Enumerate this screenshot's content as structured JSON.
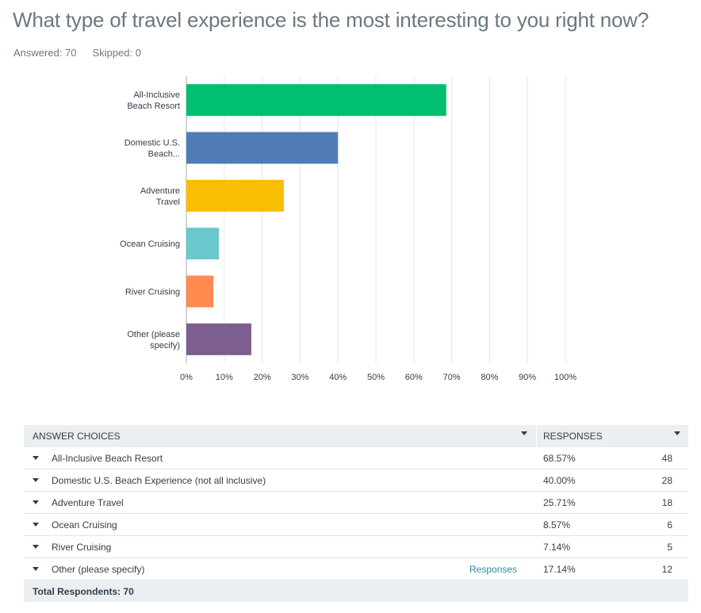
{
  "question": {
    "title": "What type of travel experience is the most interesting to you right now?",
    "answered": "Answered: 70",
    "skipped": "Skipped: 0"
  },
  "colors": {
    "bars": [
      "#00bf6f",
      "#507cb6",
      "#f9be00",
      "#6bc8cd",
      "#ff8b4f",
      "#7d5e90"
    ],
    "grid": "#e6e6e6",
    "axis": "#aaaaaa"
  },
  "chart_data": {
    "type": "bar",
    "orientation": "horizontal",
    "categories": [
      [
        "All-Inclusive",
        "Beach Resort"
      ],
      [
        "Domestic U.S.",
        "Beach..."
      ],
      [
        "Adventure",
        "Travel"
      ],
      [
        "Ocean Cruising"
      ],
      [
        "River Cruising"
      ],
      [
        "Other (please",
        "specify)"
      ]
    ],
    "values": [
      68.57,
      40.0,
      25.71,
      8.57,
      7.14,
      17.14
    ],
    "xlim": [
      0,
      100
    ],
    "xticks": [
      "0%",
      "10%",
      "20%",
      "30%",
      "40%",
      "50%",
      "60%",
      "70%",
      "80%",
      "90%",
      "100%"
    ],
    "grid": true
  },
  "table": {
    "header_choices": "ANSWER CHOICES",
    "header_responses": "RESPONSES",
    "rows": [
      {
        "label": "All-Inclusive Beach Resort",
        "pct": "68.57%",
        "count": "48",
        "link": ""
      },
      {
        "label": "Domestic U.S. Beach Experience (not all inclusive)",
        "pct": "40.00%",
        "count": "28",
        "link": ""
      },
      {
        "label": "Adventure Travel",
        "pct": "25.71%",
        "count": "18",
        "link": ""
      },
      {
        "label": "Ocean Cruising",
        "pct": "8.57%",
        "count": "6",
        "link": ""
      },
      {
        "label": "River Cruising",
        "pct": "7.14%",
        "count": "5",
        "link": ""
      },
      {
        "label": "Other (please specify)",
        "pct": "17.14%",
        "count": "12",
        "link": "Responses"
      }
    ],
    "total": "Total Respondents: 70"
  }
}
